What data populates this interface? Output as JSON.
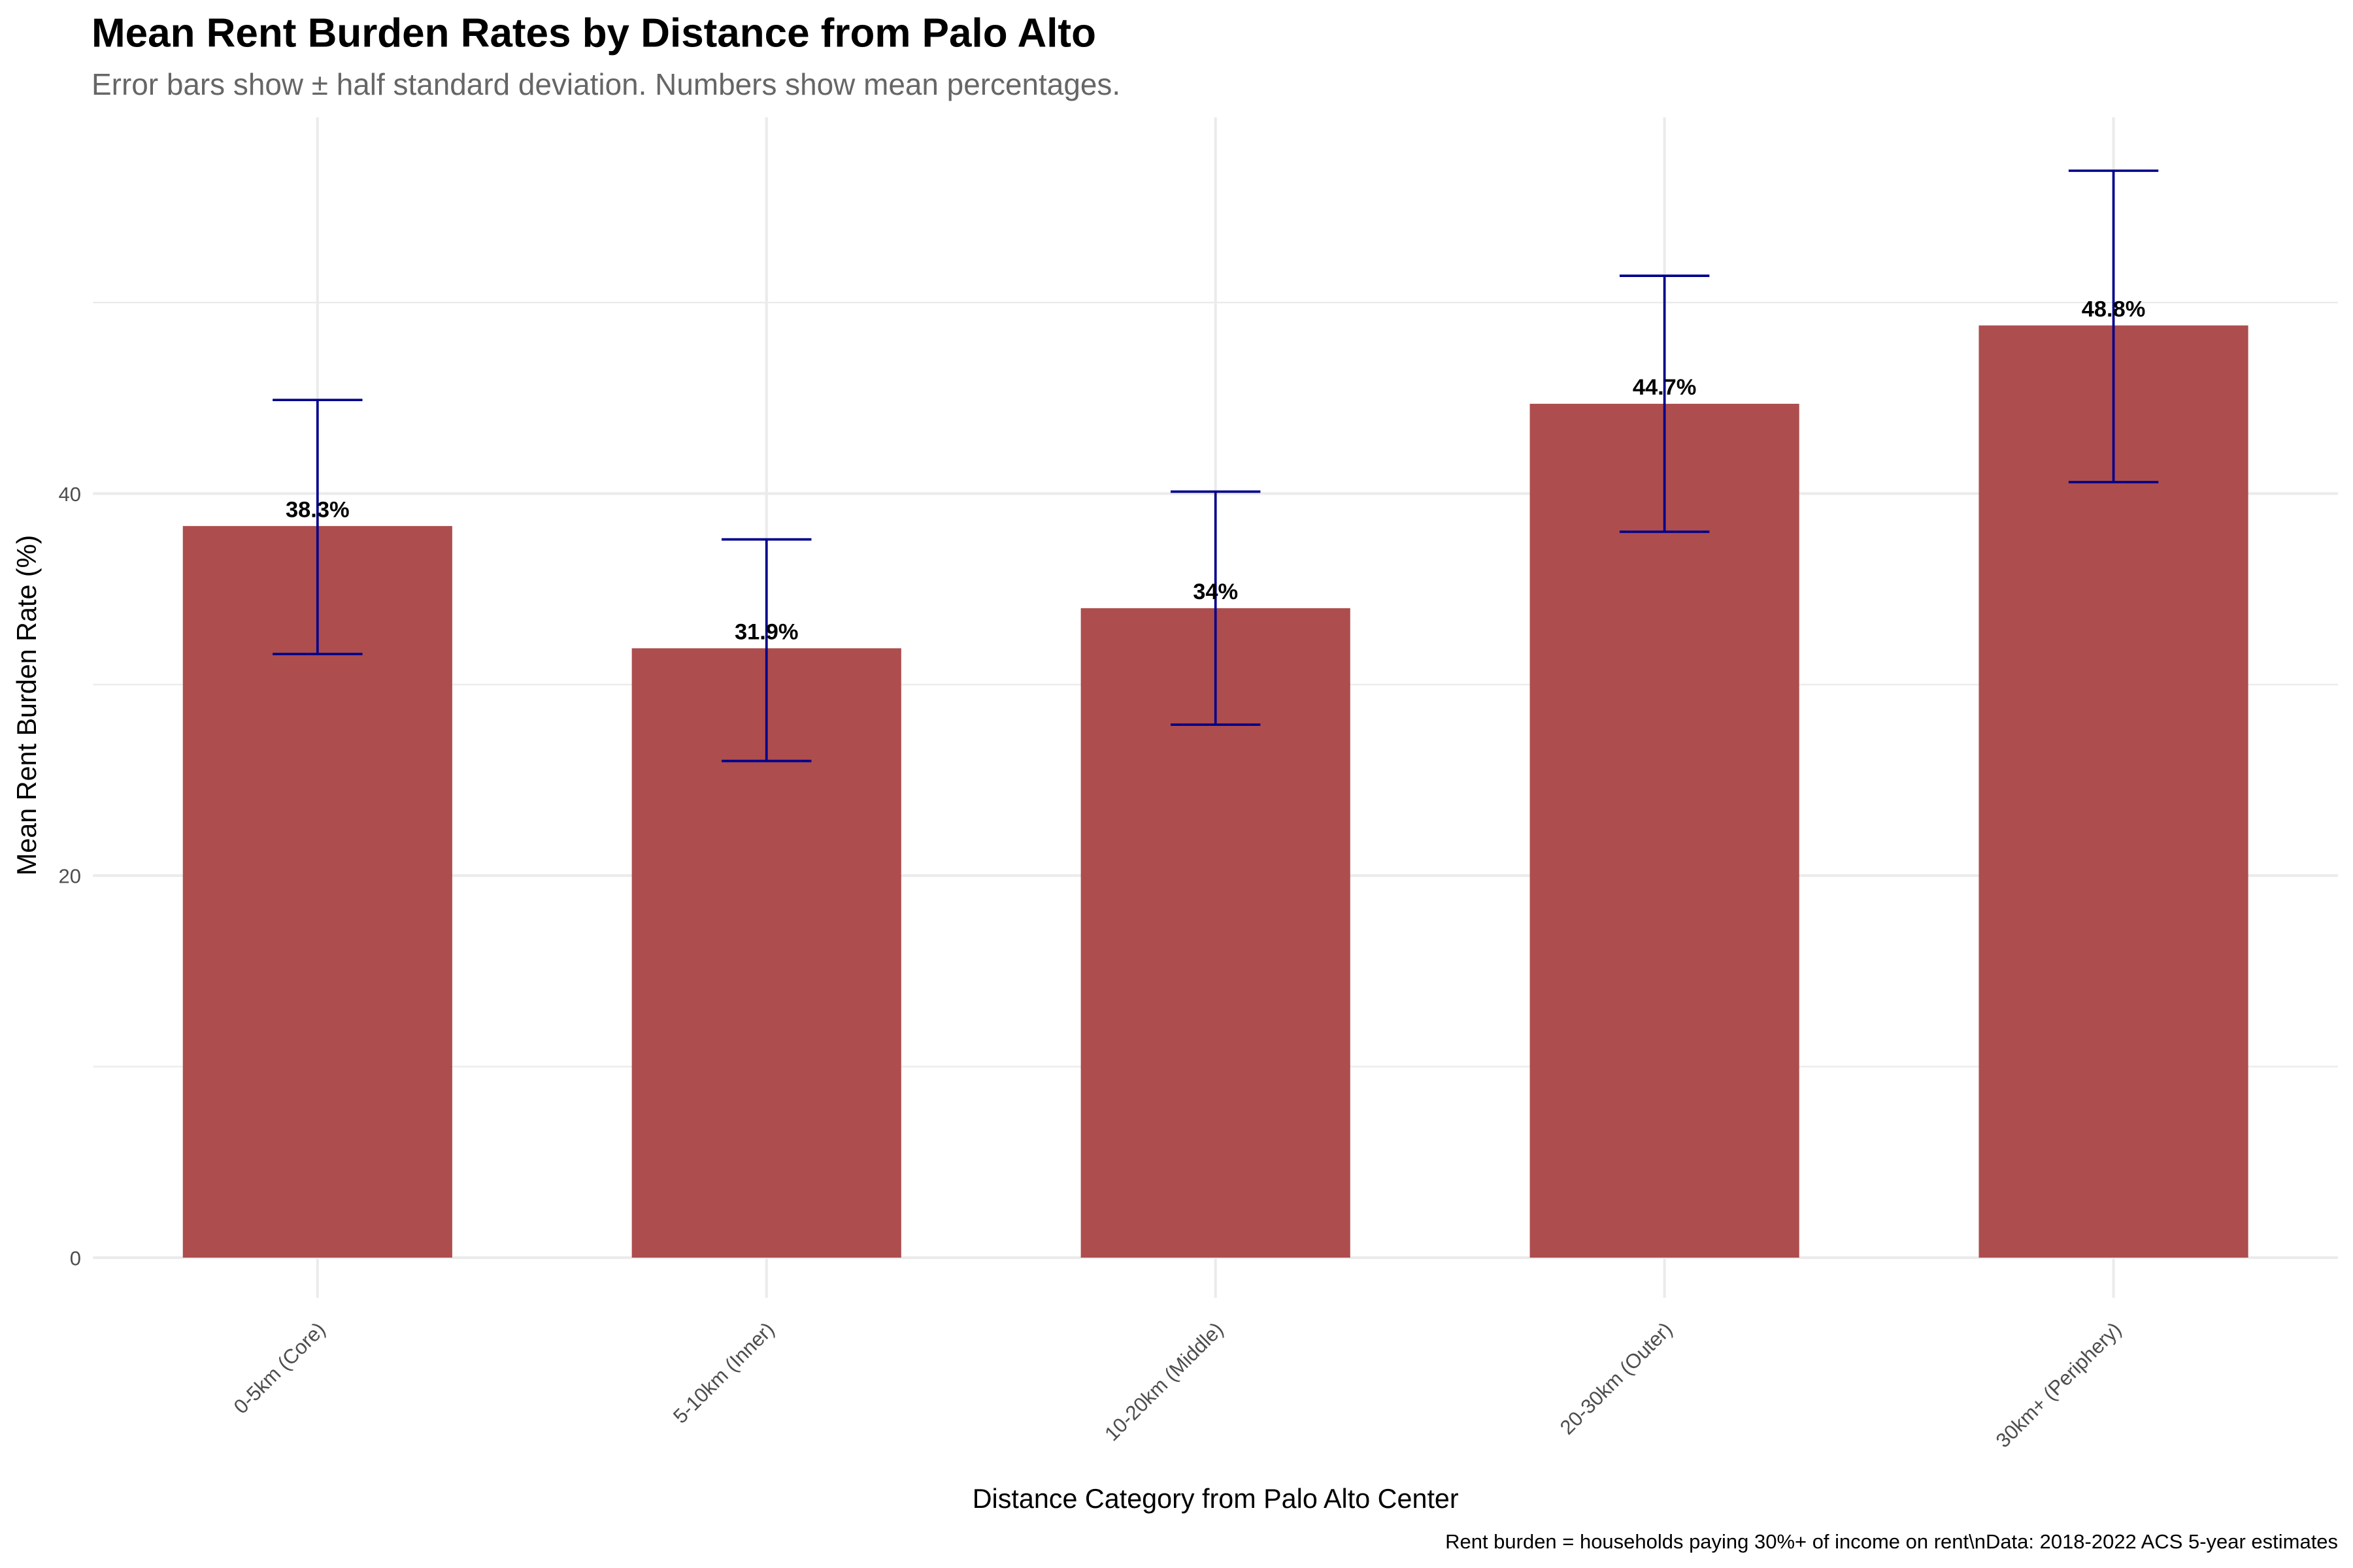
{
  "chart_data": {
    "type": "bar",
    "title": "Mean Rent Burden Rates by Distance from Palo Alto",
    "subtitle": "Error bars show ± half standard deviation. Numbers show mean percentages.",
    "xlabel": "Distance Category from Palo Alto Center",
    "ylabel": "Mean Rent Burden Rate (%)",
    "caption": "Rent burden = households paying 30%+ of income on rent\\nData: 2018-2022 ACS 5-year estimates",
    "categories": [
      "0-5km (Core)",
      "5-10km (Inner)",
      "10-20km (Middle)",
      "20-30km (Outer)",
      "30km+ (Periphery)"
    ],
    "values": [
      38.3,
      31.9,
      34.0,
      44.7,
      48.8
    ],
    "data_labels": [
      "38.3%",
      "31.9%",
      "34%",
      "44.7%",
      "48.8%"
    ],
    "error_low": [
      31.6,
      26.0,
      27.9,
      38.0,
      40.6
    ],
    "error_high": [
      44.9,
      37.6,
      40.1,
      51.4,
      56.9
    ],
    "yticks": [
      0,
      20,
      40
    ],
    "yticklabels": [
      "0",
      "20",
      "40"
    ],
    "ylim": [
      -2.1,
      59.7
    ],
    "grid": true,
    "legend": "none",
    "colors": {
      "bar": "#AD4D4E",
      "error_bar": "#00008B",
      "grid": "#EBEBEB"
    }
  }
}
